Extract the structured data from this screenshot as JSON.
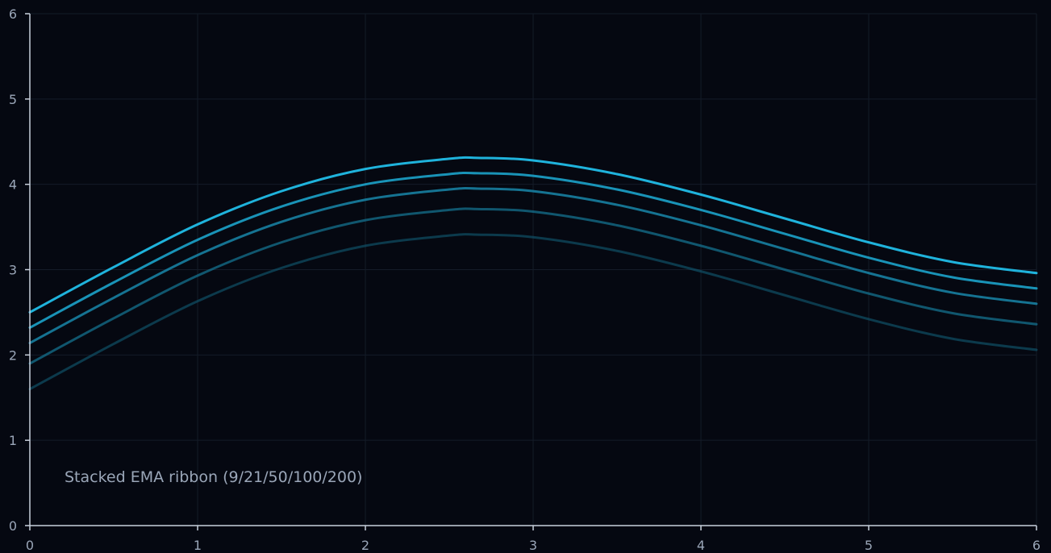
{
  "chart_data": {
    "type": "line",
    "title": "",
    "xlabel": "",
    "ylabel": "",
    "xlim": [
      0,
      6
    ],
    "ylim": [
      0,
      6
    ],
    "x_ticks": [
      0,
      1,
      2,
      3,
      4,
      5,
      6
    ],
    "y_ticks": [
      0,
      1,
      2,
      3,
      4,
      5,
      6
    ],
    "grid": true,
    "legend": "none",
    "annotation": "Stacked EMA ribbon (9/21/50/100/200)",
    "x": [
      0,
      0.5,
      1,
      1.5,
      2,
      2.5,
      2.67,
      3,
      3.5,
      4,
      4.5,
      5,
      5.5,
      6
    ],
    "series": [
      {
        "color": "#1fb3dc",
        "opacity": 1.0,
        "values": [
          2.5,
          3.03,
          3.53,
          3.92,
          4.18,
          4.3,
          4.31,
          4.28,
          4.12,
          3.88,
          3.6,
          3.32,
          3.09,
          2.96
        ]
      },
      {
        "color": "#1ca3ca",
        "opacity": 0.9,
        "values": [
          2.32,
          2.85,
          3.35,
          3.74,
          4.0,
          4.12,
          4.13,
          4.1,
          3.94,
          3.7,
          3.42,
          3.14,
          2.91,
          2.78
        ]
      },
      {
        "color": "#198fb3",
        "opacity": 0.8,
        "values": [
          2.14,
          2.67,
          3.17,
          3.56,
          3.82,
          3.94,
          3.95,
          3.92,
          3.76,
          3.52,
          3.24,
          2.96,
          2.73,
          2.6
        ]
      },
      {
        "color": "#157795",
        "opacity": 0.7,
        "values": [
          1.9,
          2.43,
          2.93,
          3.32,
          3.58,
          3.7,
          3.71,
          3.68,
          3.52,
          3.28,
          3.0,
          2.72,
          2.49,
          2.36
        ]
      },
      {
        "color": "#115c74",
        "opacity": 0.6,
        "values": [
          1.6,
          2.13,
          2.63,
          3.02,
          3.28,
          3.4,
          3.41,
          3.38,
          3.22,
          2.98,
          2.7,
          2.42,
          2.19,
          2.06
        ]
      }
    ],
    "colors": {
      "background": "#050811",
      "grid": "#141b28",
      "axis": "#c8d0dc",
      "tick_text": "#9aa6b8"
    }
  }
}
